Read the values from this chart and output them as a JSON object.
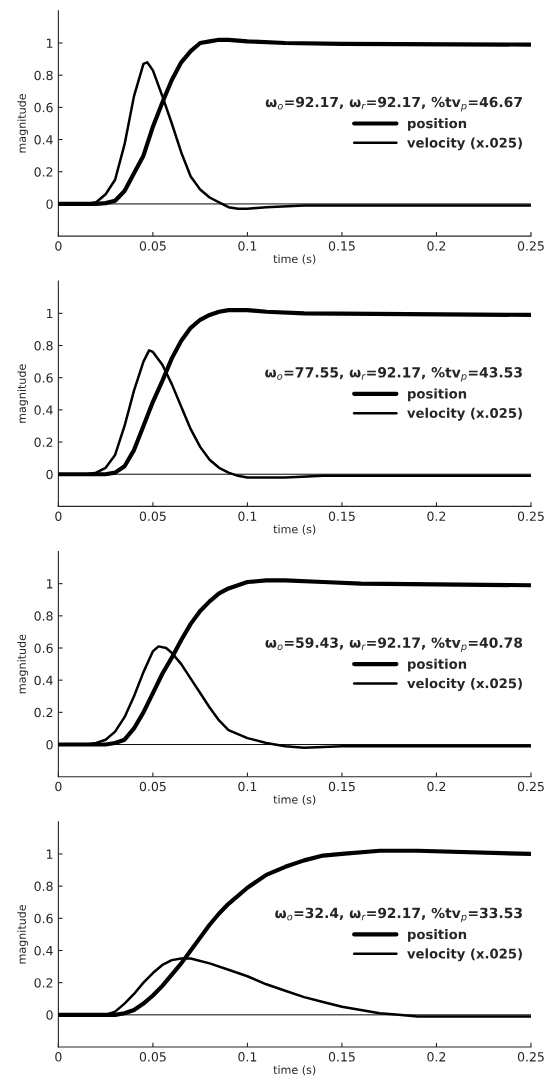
{
  "chart_data": [
    {
      "type": "line",
      "xlabel": "time (s)",
      "ylabel": "magnitude",
      "legend_title": "ω$_{o}$=92.17, ω$_{r}$=92.17, %tv$_{p}$=46.67",
      "legend": "right",
      "grid": false,
      "xlim": [
        0,
        0.25
      ],
      "xticks": [
        0,
        0.05,
        0.1,
        0.15,
        0.2,
        0.25
      ],
      "ylim": [
        -0.2,
        1.2
      ],
      "yticks": [
        0,
        0.2,
        0.4,
        0.6,
        0.8,
        1
      ],
      "ref_lines": [
        {
          "axis": "y",
          "value": 0,
          "color": "#000000"
        }
      ],
      "series": [
        {
          "name": "position",
          "color": "#000000",
          "x": [
            0,
            0.02,
            0.025,
            0.03,
            0.035,
            0.04,
            0.045,
            0.05,
            0.055,
            0.06,
            0.065,
            0.07,
            0.075,
            0.08,
            0.085,
            0.09,
            0.1,
            0.12,
            0.15,
            0.25
          ],
          "values": [
            0,
            0,
            0.005,
            0.02,
            0.08,
            0.19,
            0.3,
            0.48,
            0.63,
            0.77,
            0.88,
            0.95,
            1.0,
            1.01,
            1.02,
            1.02,
            1.01,
            1.0,
            0.995,
            0.99
          ]
        },
        {
          "name": "velocity (x.025)",
          "color": "#000000",
          "x": [
            0,
            0.015,
            0.02,
            0.025,
            0.03,
            0.035,
            0.04,
            0.045,
            0.047,
            0.05,
            0.055,
            0.06,
            0.065,
            0.07,
            0.075,
            0.08,
            0.085,
            0.09,
            0.095,
            0.1,
            0.11,
            0.13,
            0.25
          ],
          "values": [
            0,
            0,
            0.01,
            0.06,
            0.15,
            0.37,
            0.67,
            0.87,
            0.88,
            0.83,
            0.67,
            0.5,
            0.32,
            0.17,
            0.09,
            0.04,
            0.01,
            -0.02,
            -0.03,
            -0.03,
            -0.02,
            -0.01,
            -0.01
          ]
        }
      ]
    },
    {
      "type": "line",
      "xlabel": "time (s)",
      "ylabel": "magnitude",
      "legend_title": "ω$_{o}$=77.55, ω$_{r}$=92.17, %tv$_{p}$=43.53",
      "legend": "right",
      "grid": false,
      "xlim": [
        0,
        0.25
      ],
      "xticks": [
        0,
        0.05,
        0.1,
        0.15,
        0.2,
        0.25
      ],
      "ylim": [
        -0.2,
        1.2
      ],
      "yticks": [
        0,
        0.2,
        0.4,
        0.6,
        0.8,
        1
      ],
      "ref_lines": [
        {
          "axis": "y",
          "value": 0,
          "color": "#000000"
        }
      ],
      "series": [
        {
          "name": "position",
          "color": "#000000",
          "x": [
            0,
            0.025,
            0.03,
            0.035,
            0.04,
            0.045,
            0.05,
            0.055,
            0.06,
            0.065,
            0.07,
            0.075,
            0.08,
            0.085,
            0.09,
            0.1,
            0.11,
            0.13,
            0.25
          ],
          "values": [
            0,
            0,
            0.01,
            0.05,
            0.15,
            0.3,
            0.45,
            0.58,
            0.72,
            0.83,
            0.91,
            0.96,
            0.99,
            1.01,
            1.02,
            1.02,
            1.01,
            1.0,
            0.99
          ]
        },
        {
          "name": "velocity (x.025)",
          "color": "#000000",
          "x": [
            0,
            0.015,
            0.02,
            0.025,
            0.03,
            0.035,
            0.04,
            0.045,
            0.048,
            0.05,
            0.055,
            0.06,
            0.065,
            0.07,
            0.075,
            0.08,
            0.085,
            0.09,
            0.095,
            0.1,
            0.11,
            0.12,
            0.14,
            0.25
          ],
          "values": [
            0,
            0,
            0.01,
            0.04,
            0.12,
            0.3,
            0.52,
            0.7,
            0.77,
            0.76,
            0.68,
            0.56,
            0.42,
            0.28,
            0.17,
            0.09,
            0.04,
            0.01,
            -0.01,
            -0.02,
            -0.02,
            -0.02,
            -0.01,
            -0.01
          ]
        }
      ]
    },
    {
      "type": "line",
      "xlabel": "time (s)",
      "ylabel": "magnitude",
      "legend_title": "ω$_{o}$=59.43, ω$_{r}$=92.17, %tv$_{p}$=40.78",
      "legend": "right",
      "grid": false,
      "xlim": [
        0,
        0.25
      ],
      "xticks": [
        0,
        0.05,
        0.1,
        0.15,
        0.2,
        0.25
      ],
      "ylim": [
        -0.2,
        1.2
      ],
      "yticks": [
        0,
        0.2,
        0.4,
        0.6,
        0.8,
        1
      ],
      "ref_lines": [
        {
          "axis": "y",
          "value": 0,
          "color": "#000000"
        }
      ],
      "series": [
        {
          "name": "position",
          "color": "#000000",
          "x": [
            0,
            0.025,
            0.03,
            0.035,
            0.04,
            0.045,
            0.05,
            0.055,
            0.06,
            0.065,
            0.07,
            0.075,
            0.08,
            0.085,
            0.09,
            0.1,
            0.11,
            0.12,
            0.14,
            0.16,
            0.25
          ],
          "values": [
            0,
            0,
            0.01,
            0.03,
            0.1,
            0.2,
            0.32,
            0.44,
            0.54,
            0.65,
            0.75,
            0.83,
            0.89,
            0.94,
            0.97,
            1.01,
            1.02,
            1.02,
            1.01,
            1.0,
            0.99
          ]
        },
        {
          "name": "velocity (x.025)",
          "color": "#000000",
          "x": [
            0,
            0.015,
            0.02,
            0.025,
            0.03,
            0.035,
            0.04,
            0.045,
            0.05,
            0.053,
            0.057,
            0.06,
            0.065,
            0.07,
            0.075,
            0.08,
            0.085,
            0.09,
            0.1,
            0.11,
            0.12,
            0.13,
            0.15,
            0.25
          ],
          "values": [
            0,
            0,
            0.01,
            0.03,
            0.08,
            0.17,
            0.3,
            0.45,
            0.58,
            0.61,
            0.6,
            0.57,
            0.5,
            0.41,
            0.32,
            0.23,
            0.15,
            0.09,
            0.04,
            0.01,
            -0.01,
            -0.02,
            -0.01,
            -0.01
          ]
        }
      ]
    },
    {
      "type": "line",
      "xlabel": "time (s)",
      "ylabel": "magnitude",
      "legend_title": "ω$_{o}$=32.4, ω$_{r}$=92.17, %tv$_{p}$=33.53",
      "legend": "right",
      "grid": false,
      "xlim": [
        0,
        0.25
      ],
      "xticks": [
        0,
        0.05,
        0.1,
        0.15,
        0.2,
        0.25
      ],
      "ylim": [
        -0.2,
        1.2
      ],
      "yticks": [
        0,
        0.2,
        0.4,
        0.6,
        0.8,
        1
      ],
      "ref_lines": [
        {
          "axis": "y",
          "value": 0,
          "color": "#000000"
        }
      ],
      "series": [
        {
          "name": "position",
          "color": "#000000",
          "x": [
            0,
            0.03,
            0.035,
            0.04,
            0.045,
            0.05,
            0.055,
            0.06,
            0.065,
            0.07,
            0.075,
            0.08,
            0.085,
            0.09,
            0.1,
            0.11,
            0.12,
            0.13,
            0.14,
            0.15,
            0.17,
            0.19,
            0.25
          ],
          "values": [
            0,
            0,
            0.01,
            0.03,
            0.07,
            0.12,
            0.18,
            0.25,
            0.32,
            0.4,
            0.48,
            0.56,
            0.63,
            0.69,
            0.79,
            0.87,
            0.92,
            0.96,
            0.99,
            1.0,
            1.02,
            1.02,
            1.0
          ]
        },
        {
          "name": "velocity (x.025)",
          "color": "#000000",
          "x": [
            0,
            0.025,
            0.03,
            0.035,
            0.04,
            0.045,
            0.05,
            0.055,
            0.06,
            0.065,
            0.07,
            0.08,
            0.09,
            0.1,
            0.11,
            0.12,
            0.13,
            0.14,
            0.15,
            0.16,
            0.17,
            0.18,
            0.19,
            0.25
          ],
          "values": [
            0,
            0,
            0.02,
            0.07,
            0.13,
            0.2,
            0.26,
            0.31,
            0.34,
            0.35,
            0.35,
            0.32,
            0.28,
            0.24,
            0.19,
            0.15,
            0.11,
            0.08,
            0.05,
            0.03,
            0.01,
            0.0,
            -0.01,
            -0.01
          ]
        }
      ]
    }
  ]
}
